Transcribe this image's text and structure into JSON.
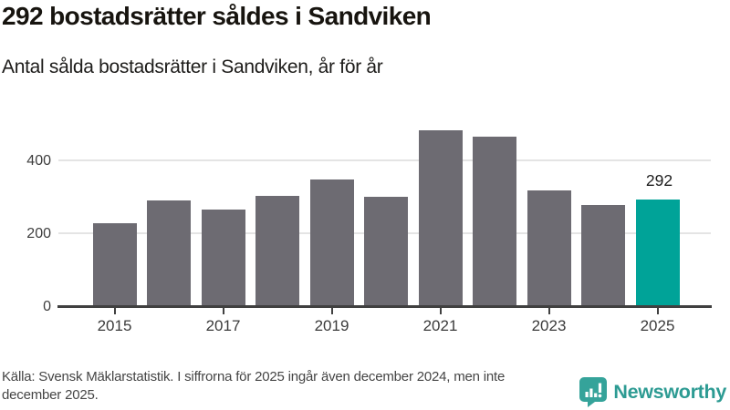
{
  "header": {
    "title": "292 bostadsrätter såldes i Sandviken",
    "subtitle": "Antal sålda bostadsrätter i Sandviken, år för år"
  },
  "chart_data": {
    "type": "bar",
    "title": "292 bostadsrätter såldes i Sandviken",
    "subtitle": "Antal sålda bostadsrätter i Sandviken, år för år",
    "categories": [
      2015,
      2016,
      2017,
      2018,
      2019,
      2020,
      2021,
      2022,
      2023,
      2024,
      2025
    ],
    "values": [
      228,
      290,
      265,
      304,
      347,
      300,
      481,
      465,
      318,
      278,
      292
    ],
    "highlight": {
      "year": 2025,
      "value": 292,
      "label": "292"
    },
    "x_tick_labels": [
      "2015",
      "2017",
      "2019",
      "2021",
      "2023",
      "2025"
    ],
    "y_ticks": [
      0,
      200,
      400
    ],
    "ylim": [
      0,
      500
    ],
    "grid": "horizontal-only",
    "legend": "none",
    "bar_color": "#6d6b72",
    "highlight_color": "#00a398",
    "axis_color": "#404040",
    "gridline_color": "#e4e4e4"
  },
  "footer": {
    "source": "Källa: Svensk Mäklarstatistik. I siffrorna för 2025 ingår även december 2024, men inte december 2025.",
    "brand_name": "Newsworthy",
    "brand_color": "#2d9b93",
    "brand_icon": "newsworthy-speech-bubble-bar-chart-icon",
    "brand_icon_color": "#35a39a"
  }
}
